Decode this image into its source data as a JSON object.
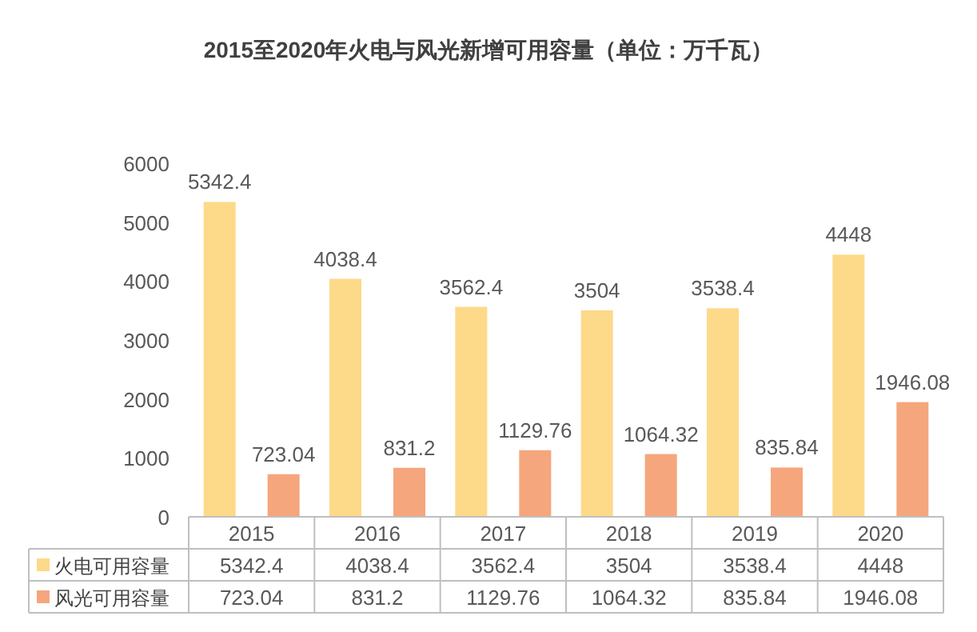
{
  "chart_data": {
    "type": "bar",
    "title": "2015至2020年火电与风光新增可用容量（单位：万千瓦）",
    "categories": [
      "2015",
      "2016",
      "2017",
      "2018",
      "2019",
      "2020"
    ],
    "series": [
      {
        "name": "火电可用容量",
        "color": "#fdd98a",
        "values": [
          5342.4,
          4038.4,
          3562.4,
          3504,
          3538.4,
          4448
        ]
      },
      {
        "name": "风光可用容量",
        "color": "#f5a67c",
        "values": [
          723.04,
          831.2,
          1129.76,
          1064.32,
          835.84,
          1946.08
        ]
      }
    ],
    "ylim": [
      0,
      6000
    ],
    "yticks": [
      0,
      1000,
      2000,
      3000,
      4000,
      5000,
      6000
    ],
    "data_labels": true,
    "legend": "bottom",
    "annotations": [
      "5342.4",
      "4038.4",
      "3562.4",
      "3504",
      "3538.4",
      "4448",
      "723.04",
      "831.2",
      "1129.76",
      "1064.32",
      "835.84",
      "1946.08"
    ]
  }
}
